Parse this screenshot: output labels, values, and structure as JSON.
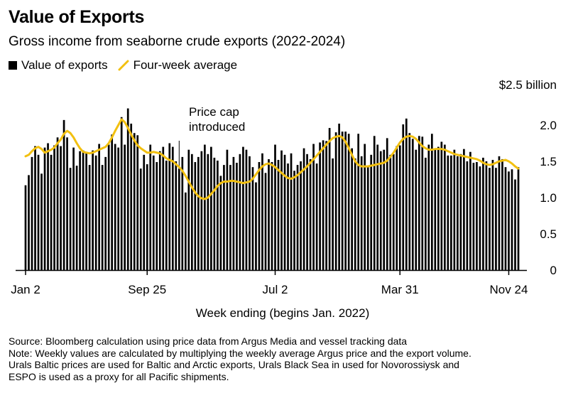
{
  "chart_data": {
    "type": "bar",
    "title": "Value of Exports",
    "subtitle": "Gross income from seaborne crude exports (2022-2024)",
    "xlabel": "Week ending (begins Jan. 2022)",
    "ylabel": "",
    "ylim": [
      0,
      2.5
    ],
    "y_ticks": [
      {
        "value": 0,
        "label": "0"
      },
      {
        "value": 0.5,
        "label": "0.5"
      },
      {
        "value": 1.0,
        "label": "1.0"
      },
      {
        "value": 1.5,
        "label": "1.5"
      },
      {
        "value": 2.0,
        "label": "2.0"
      },
      {
        "value": 2.5,
        "label": "$2.5 billion"
      }
    ],
    "x_ticks": [
      {
        "index": 0,
        "label": "Jan 2"
      },
      {
        "index": 38,
        "label": "Sep 25"
      },
      {
        "index": 78,
        "label": "Jul 2"
      },
      {
        "index": 117,
        "label": "Mar 31"
      },
      {
        "index": 151,
        "label": "Nov 24"
      }
    ],
    "legend": [
      {
        "name": "Value of exports",
        "type": "bar",
        "color": "#000000"
      },
      {
        "name": "Four-week average",
        "type": "line",
        "color": "#f2c010"
      }
    ],
    "annotation": {
      "index": 48,
      "lines": [
        "Price cap",
        "introduced"
      ]
    },
    "series": [
      {
        "name": "Value of exports",
        "values": [
          1.17,
          1.31,
          1.56,
          1.71,
          1.59,
          1.33,
          1.69,
          1.75,
          1.59,
          1.72,
          1.83,
          1.71,
          2.07,
          1.83,
          1.41,
          1.69,
          1.44,
          1.64,
          1.65,
          1.63,
          1.45,
          1.65,
          1.58,
          1.74,
          1.45,
          1.56,
          1.73,
          1.87,
          1.74,
          1.69,
          2.11,
          1.73,
          2.23,
          2.02,
          1.89,
          1.86,
          1.4,
          1.59,
          1.46,
          1.73,
          1.58,
          1.49,
          1.64,
          1.7,
          1.51,
          1.75,
          1.7,
          1.5,
          1.4,
          1.56,
          1.07,
          1.66,
          1.6,
          1.49,
          1.56,
          1.64,
          1.73,
          1.6,
          1.7,
          1.55,
          1.51,
          1.3,
          1.45,
          1.66,
          1.45,
          1.56,
          1.48,
          1.6,
          1.7,
          1.66,
          1.57,
          1.42,
          1.21,
          1.49,
          1.61,
          1.34,
          1.53,
          1.49,
          1.73,
          1.52,
          1.65,
          1.59,
          1.47,
          1.61,
          1.37,
          1.45,
          1.5,
          1.68,
          1.6,
          1.53,
          1.74,
          1.47,
          1.76,
          1.79,
          1.78,
          1.96,
          1.54,
          1.9,
          2.02,
          1.91,
          1.91,
          1.88,
          1.68,
          1.54,
          1.88,
          1.57,
          1.74,
          1.43,
          1.59,
          1.85,
          1.73,
          1.64,
          1.66,
          1.82,
          1.59,
          1.6,
          1.71,
          1.72,
          2.01,
          2.09,
          1.89,
          1.81,
          1.66,
          1.85,
          1.84,
          1.55,
          1.73,
          1.88,
          1.66,
          1.7,
          1.77,
          1.73,
          1.58,
          1.58,
          1.66,
          1.57,
          1.6,
          1.67,
          1.5,
          1.63,
          1.48,
          1.49,
          1.43,
          1.55,
          1.5,
          1.41,
          1.52,
          1.41,
          1.57,
          1.53,
          1.42,
          1.36,
          1.39,
          1.25,
          1.42
        ]
      },
      {
        "name": "Four-week average",
        "values": [
          1.57,
          1.59,
          1.64,
          1.68,
          1.7,
          1.67,
          1.62,
          1.64,
          1.66,
          1.69,
          1.75,
          1.8,
          1.88,
          1.92,
          1.89,
          1.83,
          1.75,
          1.68,
          1.63,
          1.62,
          1.61,
          1.62,
          1.64,
          1.66,
          1.68,
          1.7,
          1.75,
          1.83,
          1.92,
          2.0,
          2.08,
          2.04,
          1.96,
          1.87,
          1.79,
          1.72,
          1.68,
          1.65,
          1.62,
          1.62,
          1.63,
          1.62,
          1.61,
          1.58,
          1.54,
          1.52,
          1.5,
          1.46,
          1.42,
          1.37,
          1.3,
          1.22,
          1.14,
          1.07,
          1.02,
          0.99,
          0.98,
          1.0,
          1.05,
          1.1,
          1.16,
          1.2,
          1.22,
          1.22,
          1.23,
          1.23,
          1.22,
          1.21,
          1.2,
          1.21,
          1.22,
          1.26,
          1.32,
          1.38,
          1.43,
          1.46,
          1.47,
          1.45,
          1.42,
          1.38,
          1.34,
          1.3,
          1.27,
          1.26,
          1.28,
          1.31,
          1.35,
          1.39,
          1.43,
          1.48,
          1.53,
          1.58,
          1.63,
          1.68,
          1.73,
          1.78,
          1.82,
          1.84,
          1.85,
          1.83,
          1.77,
          1.68,
          1.59,
          1.5,
          1.45,
          1.43,
          1.43,
          1.43,
          1.44,
          1.45,
          1.46,
          1.47,
          1.48,
          1.51,
          1.56,
          1.62,
          1.69,
          1.76,
          1.81,
          1.84,
          1.85,
          1.84,
          1.81,
          1.76,
          1.71,
          1.68,
          1.66,
          1.66,
          1.67,
          1.67,
          1.67,
          1.66,
          1.64,
          1.62,
          1.6,
          1.59,
          1.58,
          1.57,
          1.56,
          1.55,
          1.54,
          1.53,
          1.51,
          1.48,
          1.46,
          1.45,
          1.46,
          1.48,
          1.5,
          1.51,
          1.52,
          1.5,
          1.47,
          1.43,
          1.4
        ]
      }
    ]
  },
  "legend_labels": {
    "bar": "Value of exports",
    "line": "Four-week average"
  },
  "footer": {
    "source": "Source: Bloomberg calculation using price data from Argus Media and vessel tracking data",
    "note1": "Note: Weekly values are calculated by multiplying the weekly average Argus price and the export volume.",
    "note2": "Urals Baltic prices are used for Baltic and Arctic exports, Urals Black Sea in used for Novorossiysk and",
    "note3": "ESPO is used as a proxy for all Pacific shipments."
  }
}
